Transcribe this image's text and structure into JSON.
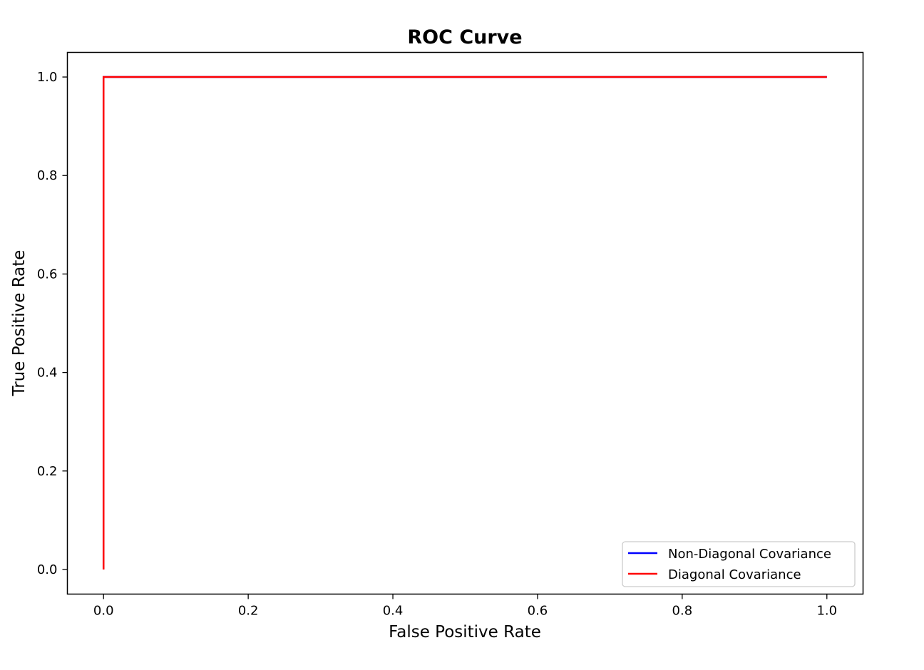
{
  "chart_data": {
    "type": "line",
    "title": "ROC Curve",
    "xlabel": "False Positive Rate",
    "ylabel": "True Positive Rate",
    "xlim": [
      -0.05,
      1.05
    ],
    "ylim": [
      -0.05,
      1.05
    ],
    "x_ticks": [
      0.0,
      0.2,
      0.4,
      0.6,
      0.8,
      1.0
    ],
    "y_ticks": [
      0.0,
      0.2,
      0.4,
      0.6,
      0.8,
      1.0
    ],
    "x_tick_labels": [
      "0.0",
      "0.2",
      "0.4",
      "0.6",
      "0.8",
      "1.0"
    ],
    "y_tick_labels": [
      "0.0",
      "0.2",
      "0.4",
      "0.6",
      "0.8",
      "1.0"
    ],
    "grid": false,
    "legend_position": "lower-right",
    "series": [
      {
        "name": "Non-Diagonal Covariance",
        "color": "#0000ff",
        "x": [
          0.0,
          0.0,
          1.0
        ],
        "y": [
          0.0,
          1.0,
          1.0
        ]
      },
      {
        "name": "Diagonal Covariance",
        "color": "#ff0000",
        "x": [
          0.0,
          0.0,
          1.0
        ],
        "y": [
          0.0,
          1.0,
          1.0
        ]
      }
    ]
  }
}
